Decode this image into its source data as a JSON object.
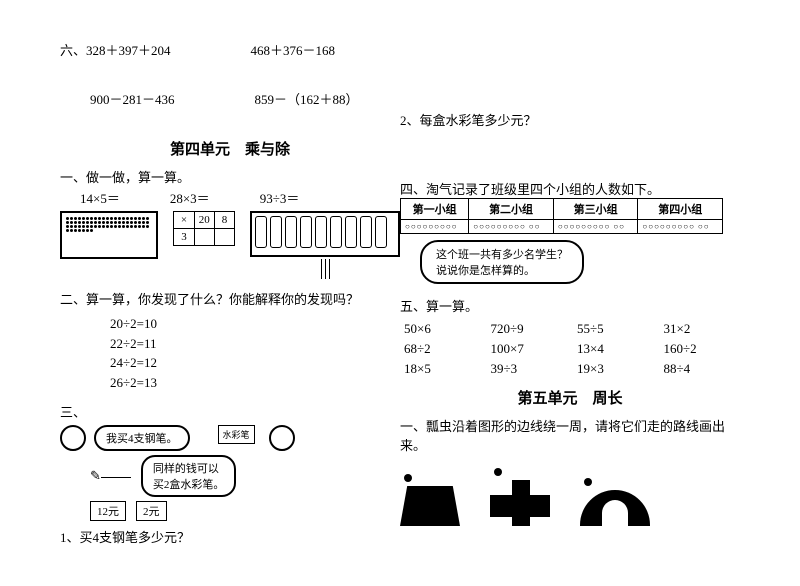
{
  "six": {
    "label": "六、",
    "p1": "328＋397＋204",
    "p2": "468＋376－168",
    "p3": "900－281－436",
    "p4": "859－（162＋88）"
  },
  "q2_right": "2、每盒水彩笔多少元？",
  "unit4": {
    "title": "第四单元　乘与除",
    "s1_head": "一、做一做，算一算。",
    "e1": "14×5＝",
    "e2": "28×3＝",
    "e3": "93÷3＝",
    "mini": {
      "c1": "×",
      "c2": "20",
      "c3": "8",
      "c4": "3"
    },
    "s2_head": "二、算一算，你发现了什么？你能解释你的发现吗？",
    "find": [
      "20÷2=10",
      "22÷2=11",
      "24÷2=12",
      "26÷2=13"
    ],
    "s3_head": "三、",
    "bubble1": "我买4支钢笔。",
    "bubble2": "同样的钱可以\n买2盒水彩笔。",
    "watercolor_label": "水彩笔",
    "price1": "12元",
    "price2": "2元",
    "q1": "1、买4支钢笔多少元？"
  },
  "s4": {
    "head": "四、淘气记录了班级里四个小组的人数如下。",
    "cols": [
      "第一小组",
      "第二小组",
      "第三小组",
      "第四小组"
    ],
    "row": [
      "○○○○○○○○○",
      "○○○○○○○○○ ○○",
      "○○○○○○○○○ ○○",
      "○○○○○○○○○ ○○"
    ],
    "bubble_l1": "这个班一共有多少名学生？",
    "bubble_l2": "说说你是怎样算的。"
  },
  "s5": {
    "head": "五、算一算。",
    "grid": [
      "50×6",
      "720÷9",
      "55÷5",
      "31×2",
      "68÷2",
      "100×7",
      "13×4",
      "160÷2",
      "18×5",
      "39÷3",
      "19×3",
      "88÷4"
    ]
  },
  "unit5": {
    "title": "第五单元　周长",
    "s1": "一、瓢虫沿着图形的边线绕一周，请将它们走的路线画出来。"
  }
}
